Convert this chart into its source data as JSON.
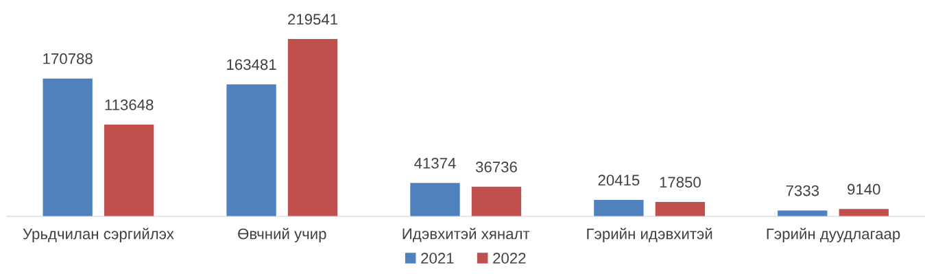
{
  "chart_data": {
    "type": "bar",
    "categories": [
      "Урьдчилан сэргийлэх",
      "Өвчний учир",
      "Идэвхитэй хяналт",
      "Гэрийн идэвхитэй",
      "Гэрийн дуудлагаар"
    ],
    "series": [
      {
        "name": "2021",
        "color": "#4f81bd",
        "values": [
          170788,
          163481,
          41374,
          20415,
          7333
        ]
      },
      {
        "name": "2022",
        "color": "#c0504d",
        "values": [
          113648,
          219541,
          36736,
          17850,
          9140
        ]
      }
    ],
    "data_labels": true,
    "legend": "bottom",
    "grid": false
  }
}
